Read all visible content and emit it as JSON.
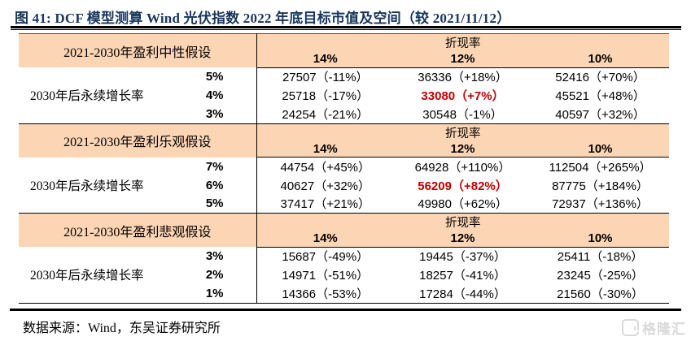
{
  "figure": {
    "title": "图 41: DCF 模型测算 Wind 光伏指数 2022 年底目标市值及空间（较 2021/11/12）"
  },
  "table": {
    "discount_rate_label": "折现率",
    "discount_rates": [
      "14%",
      "12%",
      "10%"
    ],
    "row_header": "2030年后永续增长率",
    "sections": [
      {
        "label": "2021-2030年盈利中性假设",
        "rows": [
          {
            "growth": "5%",
            "values": [
              {
                "t": "27507（-11%）",
                "red": false
              },
              {
                "t": "36336（+18%）",
                "red": false
              },
              {
                "t": "52416（+70%）",
                "red": false
              }
            ]
          },
          {
            "growth": "4%",
            "values": [
              {
                "t": "25718（-17%）",
                "red": false
              },
              {
                "t": "33080（+7%）",
                "red": true
              },
              {
                "t": "45521（+48%）",
                "red": false
              }
            ]
          },
          {
            "growth": "3%",
            "values": [
              {
                "t": "24254（-21%）",
                "red": false
              },
              {
                "t": "30548（-1%）",
                "red": false
              },
              {
                "t": "40597（+32%）",
                "red": false
              }
            ]
          }
        ]
      },
      {
        "label": "2021-2030年盈利乐观假设",
        "rows": [
          {
            "growth": "7%",
            "values": [
              {
                "t": "44754（+45%）",
                "red": false
              },
              {
                "t": "64928（+110%）",
                "red": false
              },
              {
                "t": "112504（+265%）",
                "red": false
              }
            ]
          },
          {
            "growth": "6%",
            "values": [
              {
                "t": "40627（+32%）",
                "red": false
              },
              {
                "t": "56209（+82%）",
                "red": true
              },
              {
                "t": "87775（+184%）",
                "red": false
              }
            ]
          },
          {
            "growth": "5%",
            "values": [
              {
                "t": "37417（+21%）",
                "red": false
              },
              {
                "t": "49980（+62%）",
                "red": false
              },
              {
                "t": "72937（+136%）",
                "red": false
              }
            ]
          }
        ]
      },
      {
        "label": "2021-2030年盈利悲观假设",
        "rows": [
          {
            "growth": "3%",
            "values": [
              {
                "t": "15687（-49%）",
                "red": false
              },
              {
                "t": "19445（-37%）",
                "red": false
              },
              {
                "t": "25411（-18%）",
                "red": false
              }
            ]
          },
          {
            "growth": "2%",
            "values": [
              {
                "t": "14971（-51%）",
                "red": false
              },
              {
                "t": "18257（-41%）",
                "red": false
              },
              {
                "t": "23245（-25%）",
                "red": false
              }
            ]
          },
          {
            "growth": "1%",
            "values": [
              {
                "t": "14366（-53%）",
                "red": false
              },
              {
                "t": "17284（-44%）",
                "red": false
              },
              {
                "t": "21560（-30%）",
                "red": false
              }
            ]
          }
        ]
      }
    ]
  },
  "footer": {
    "source": "数据来源：Wind，东吴证券研究所"
  },
  "watermark": {
    "text": "格隆汇"
  },
  "colors": {
    "header_band": "#FCD5B5",
    "title_navy": "#17365D",
    "highlight_red": "#C00000",
    "rule_black": "#000000",
    "watermark_gray": "#D9D9D9"
  }
}
